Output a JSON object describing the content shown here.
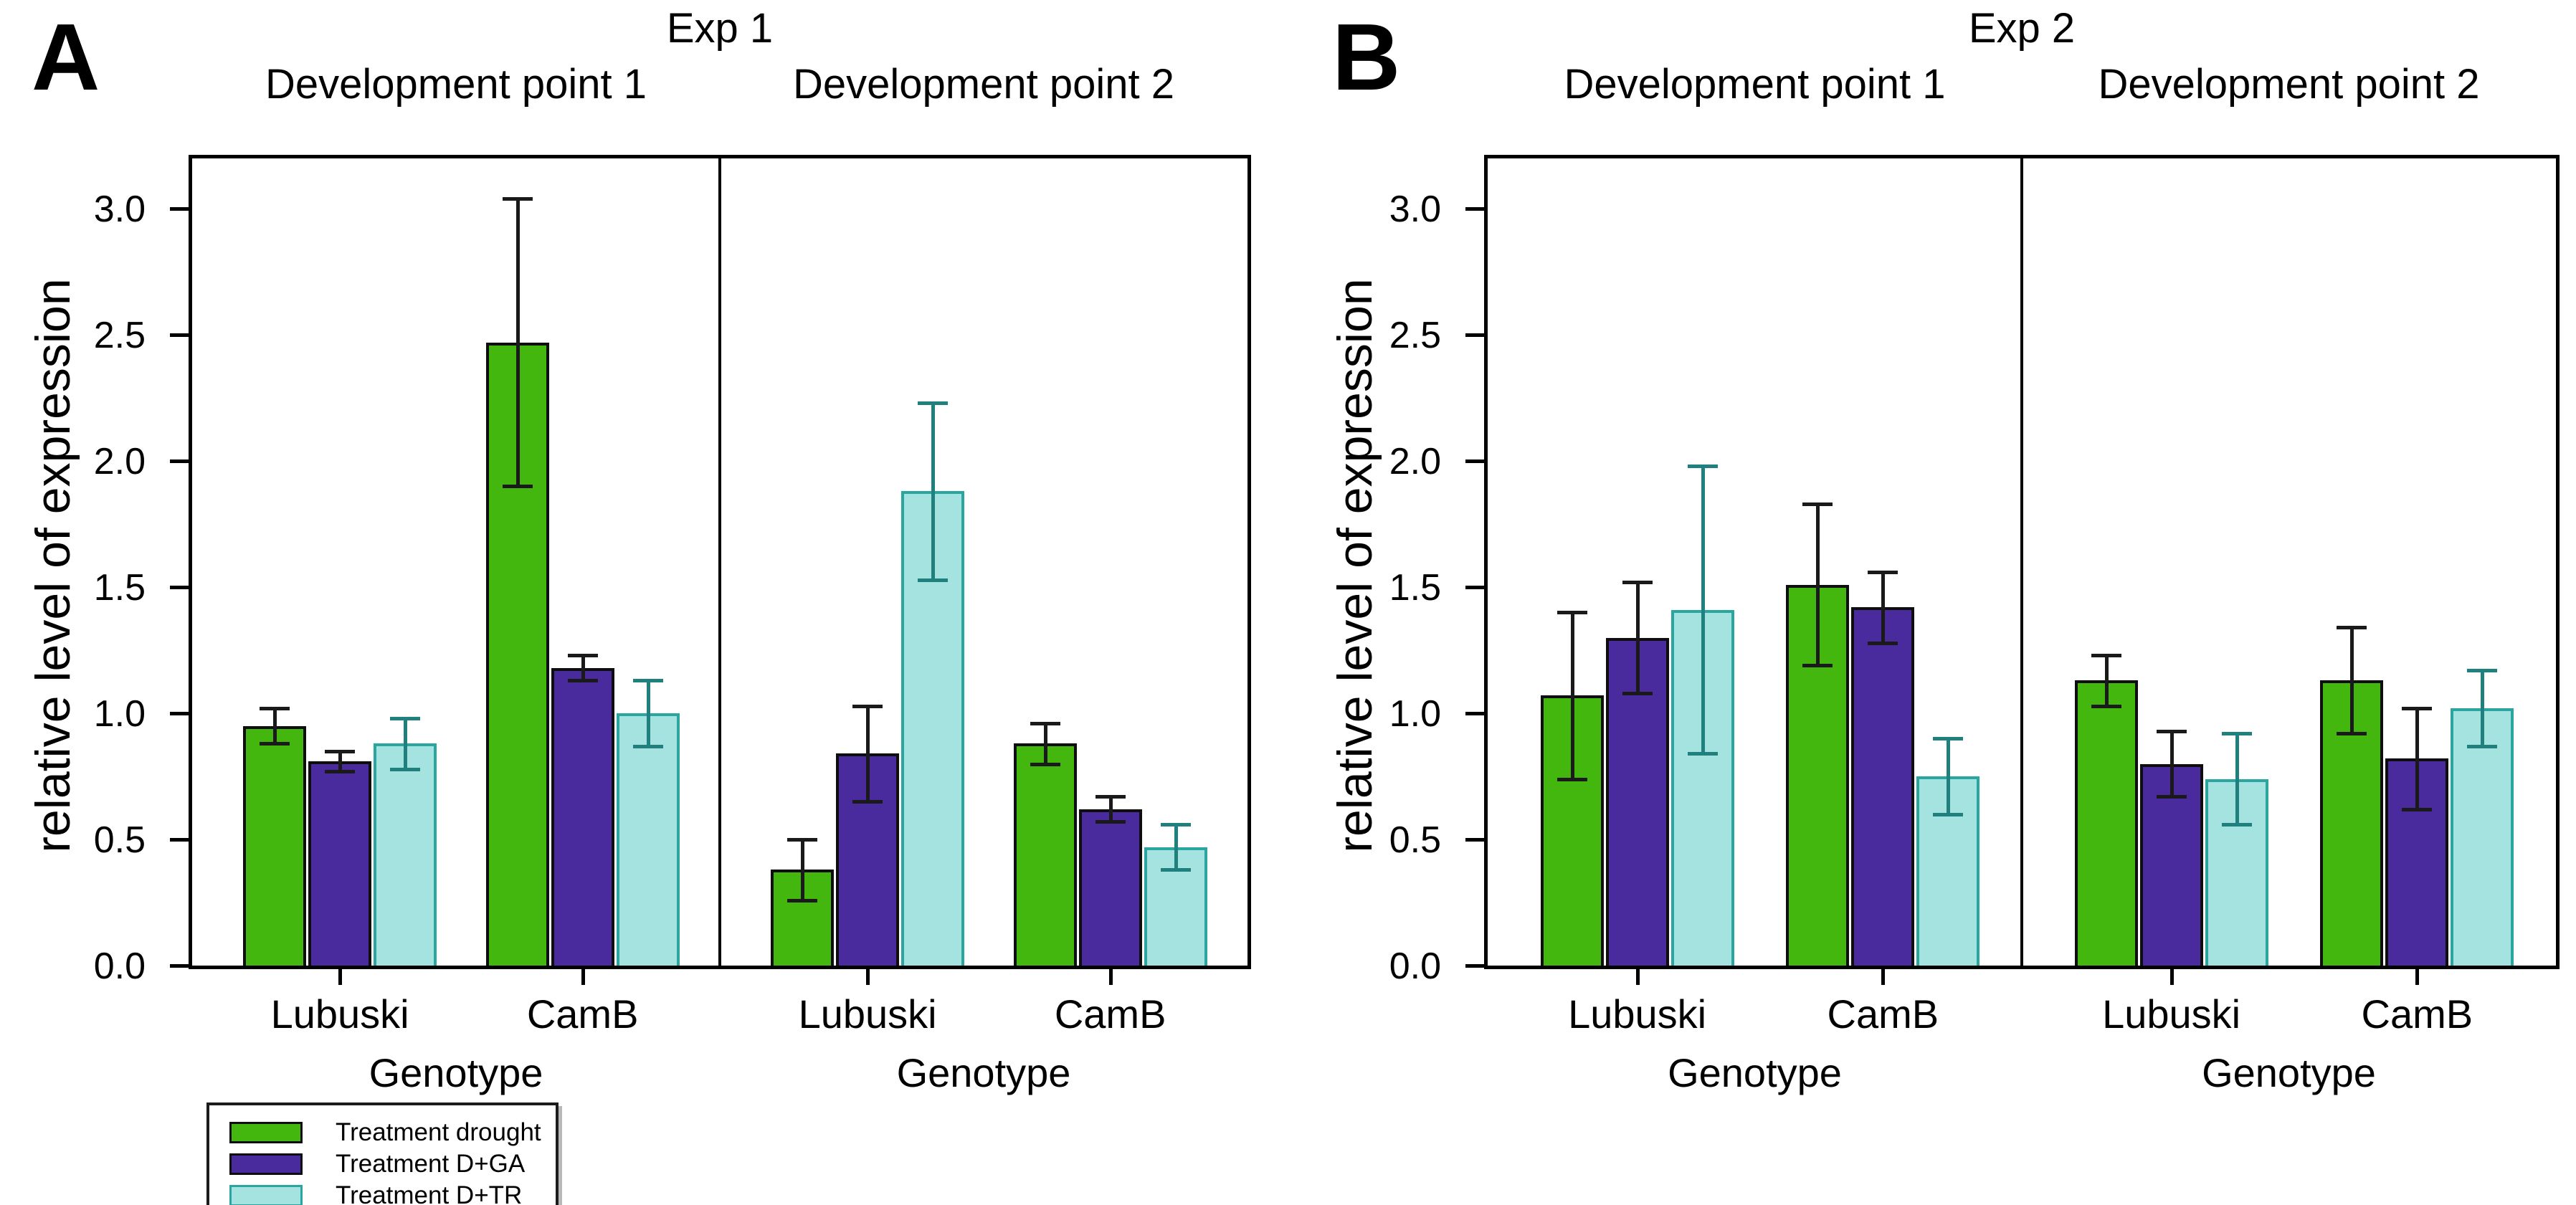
{
  "chart_data": {
    "type": "bar",
    "figure_kind": "grouped bar chart with error bars, two lettered panels each split into two development-point subpanels",
    "ylabel": "relative level of expression",
    "xlabel": "Genotype",
    "ylim": [
      0,
      3.2
    ],
    "yticks": [
      0.0,
      0.5,
      1.0,
      1.5,
      2.0,
      2.5,
      3.0
    ],
    "ytick_labels": [
      "0.0",
      "0.5",
      "1.0",
      "1.5",
      "2.0",
      "2.5",
      "3.0"
    ],
    "grid": "off",
    "legend_position": "below panel A, bottom-left",
    "series": [
      {
        "name": "Treatment drought",
        "fill": "#44B70E",
        "border": "#0e0e0e",
        "error_color": "#1a1a1a"
      },
      {
        "name": "Treatment D+GA",
        "fill": "#4A2B9E",
        "border": "#0e0e0e",
        "error_color": "#1a1a1a"
      },
      {
        "name": "Treatment D+TR",
        "fill": "#A5E3E1",
        "border": "#2AA5A0",
        "error_color": "#20807d"
      }
    ],
    "panels": [
      {
        "letter": "A",
        "title": "Exp 1",
        "ylabel": "relative level of expression",
        "subpanels": [
          {
            "subtitle": "Development point 1",
            "xlabel": "Genotype",
            "groups": [
              {
                "category": "Lubuski",
                "values": [
                  0.95,
                  0.81,
                  0.88
                ],
                "errors": [
                  0.07,
                  0.04,
                  0.1
                ]
              },
              {
                "category": "CamB",
                "values": [
                  2.47,
                  1.18,
                  1.0
                ],
                "errors": [
                  0.57,
                  0.05,
                  0.13
                ]
              }
            ]
          },
          {
            "subtitle": "Development point 2",
            "xlabel": "Genotype",
            "groups": [
              {
                "category": "Lubuski",
                "values": [
                  0.38,
                  0.84,
                  1.88
                ],
                "errors": [
                  0.12,
                  0.19,
                  0.35
                ]
              },
              {
                "category": "CamB",
                "values": [
                  0.88,
                  0.62,
                  0.47
                ],
                "errors": [
                  0.08,
                  0.05,
                  0.09
                ]
              }
            ]
          }
        ]
      },
      {
        "letter": "B",
        "title": "Exp 2",
        "ylabel": "relative level of expression",
        "subpanels": [
          {
            "subtitle": "Development point 1",
            "xlabel": "Genotype",
            "groups": [
              {
                "category": "Lubuski",
                "values": [
                  1.07,
                  1.3,
                  1.41
                ],
                "errors": [
                  0.33,
                  0.22,
                  0.57
                ]
              },
              {
                "category": "CamB",
                "values": [
                  1.51,
                  1.42,
                  0.75
                ],
                "errors": [
                  0.32,
                  0.14,
                  0.15
                ]
              }
            ]
          },
          {
            "subtitle": "Development point 2",
            "xlabel": "Genotype",
            "groups": [
              {
                "category": "Lubuski",
                "values": [
                  1.13,
                  0.8,
                  0.74
                ],
                "errors": [
                  0.1,
                  0.13,
                  0.18
                ]
              },
              {
                "category": "CamB",
                "values": [
                  1.13,
                  0.82,
                  1.02
                ],
                "errors": [
                  0.21,
                  0.2,
                  0.15
                ]
              }
            ]
          }
        ]
      }
    ],
    "legend": {
      "items": [
        {
          "label": "Treatment drought"
        },
        {
          "label": "Treatment D+GA"
        },
        {
          "label": "Treatment D+TR"
        }
      ]
    }
  }
}
